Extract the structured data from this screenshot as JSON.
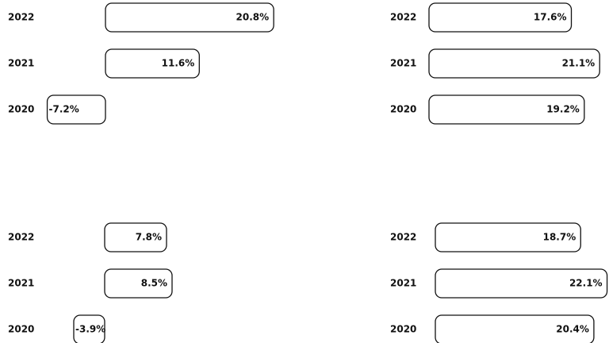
{
  "chart_data": [
    {
      "type": "bar",
      "orientation": "horizontal",
      "categories": [
        "2022",
        "2021",
        "2020"
      ],
      "values": [
        20.8,
        11.6,
        -7.2
      ],
      "value_labels": [
        "20.8%",
        "11.6%",
        "-7.2%"
      ],
      "color": "#ffffff"
    },
    {
      "type": "bar",
      "orientation": "horizontal",
      "categories": [
        "2022",
        "2021",
        "2020"
      ],
      "values": [
        17.6,
        21.1,
        19.2
      ],
      "value_labels": [
        "17.6%",
        "21.1%",
        "19.2%"
      ],
      "color": "#ffffff"
    },
    {
      "type": "bar",
      "orientation": "horizontal",
      "categories": [
        "2022",
        "2021",
        "2020"
      ],
      "values": [
        7.8,
        8.5,
        -3.9
      ],
      "value_labels": [
        "7.8%",
        "8.5%",
        "-3.9%"
      ],
      "color": "#ffffff"
    },
    {
      "type": "bar",
      "orientation": "horizontal",
      "categories": [
        "2022",
        "2021",
        "2020"
      ],
      "values": [
        18.7,
        22.1,
        20.4
      ],
      "value_labels": [
        "18.7%",
        "22.1%",
        "20.4%"
      ],
      "color": "#ffffff"
    }
  ]
}
